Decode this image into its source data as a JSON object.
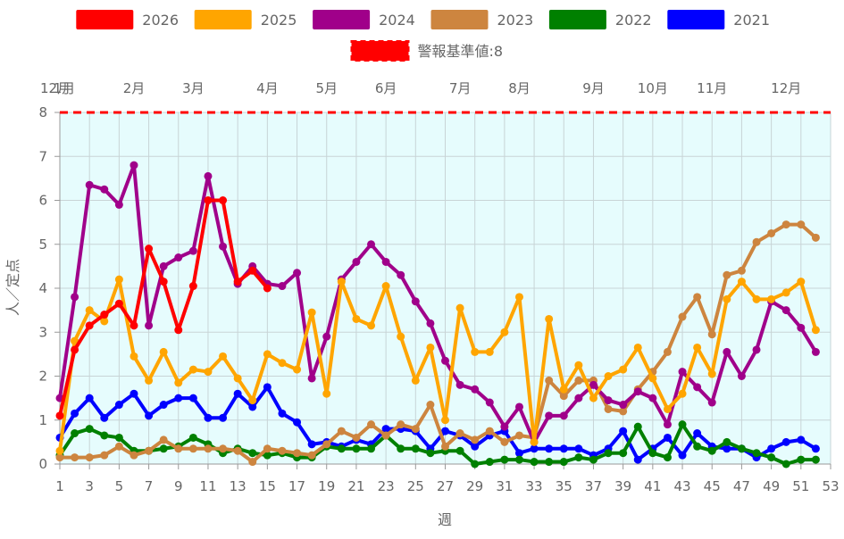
{
  "chart_data": {
    "type": "line",
    "xlabel": "週",
    "ylabel": "人／定点",
    "xlim": [
      1,
      53
    ],
    "ylim": [
      0,
      8
    ],
    "x_ticks": [
      1,
      3,
      5,
      7,
      9,
      11,
      13,
      15,
      17,
      19,
      21,
      23,
      25,
      27,
      29,
      31,
      33,
      35,
      37,
      39,
      41,
      43,
      45,
      47,
      49,
      51,
      53
    ],
    "y_ticks": [
      0,
      1,
      2,
      3,
      4,
      5,
      6,
      7,
      8
    ],
    "month_labels": [
      {
        "label": "12月",
        "week": 0.7
      },
      {
        "label": "1月",
        "week": 1.3
      },
      {
        "label": "2月",
        "week": 6.0
      },
      {
        "label": "3月",
        "week": 10.0
      },
      {
        "label": "4月",
        "week": 15.0
      },
      {
        "label": "5月",
        "week": 19.0
      },
      {
        "label": "6月",
        "week": 23.0
      },
      {
        "label": "7月",
        "week": 28.0
      },
      {
        "label": "8月",
        "week": 32.0
      },
      {
        "label": "9月",
        "week": 37.0
      },
      {
        "label": "10月",
        "week": 41.0
      },
      {
        "label": "11月",
        "week": 45.0
      },
      {
        "label": "12月",
        "week": 50.0
      }
    ],
    "threshold": {
      "name": "警報基準値:8",
      "value": 8,
      "color": "#ff0000"
    },
    "grid": true,
    "plot_background": "#e6fcfd",
    "legend_position": "top",
    "series": [
      {
        "name": "2026",
        "color": "#ff0000",
        "values": [
          1.1,
          2.6,
          3.15,
          3.4,
          3.65,
          3.15,
          4.9,
          4.15,
          3.05,
          4.05,
          6.0,
          6.0,
          4.15,
          4.4,
          4.0
        ]
      },
      {
        "name": "2025",
        "color": "#ffa500",
        "values": [
          0.3,
          2.8,
          3.5,
          3.25,
          4.2,
          2.45,
          1.9,
          2.55,
          1.85,
          2.15,
          2.1,
          2.45,
          1.95,
          1.45,
          2.5,
          2.3,
          2.15,
          3.45,
          1.6,
          4.15,
          3.3,
          3.15,
          4.05,
          2.9,
          1.9,
          2.65,
          1.0,
          3.55,
          2.55,
          2.55,
          3.0,
          3.8,
          0.5,
          3.3,
          1.7,
          2.25,
          1.5,
          2.0,
          2.15,
          2.65,
          1.95,
          1.25,
          1.6,
          2.65,
          2.05,
          3.75,
          4.15,
          3.75,
          3.75,
          3.9,
          4.15,
          3.05
        ]
      },
      {
        "name": "2024",
        "color": "#a0008a",
        "values": [
          1.5,
          3.8,
          6.35,
          6.25,
          5.9,
          6.8,
          3.15,
          4.5,
          4.7,
          4.85,
          6.55,
          4.95,
          4.1,
          4.5,
          4.1,
          4.05,
          4.35,
          1.95,
          2.9,
          4.2,
          4.6,
          5.0,
          4.6,
          4.3,
          3.7,
          3.2,
          2.35,
          1.8,
          1.7,
          1.4,
          0.85,
          1.3,
          0.5,
          1.1,
          1.1,
          1.5,
          1.8,
          1.45,
          1.35,
          1.65,
          1.5,
          0.9,
          2.1,
          1.75,
          1.4,
          2.55,
          2.0,
          2.6,
          3.7,
          3.5,
          3.1,
          2.55
        ]
      },
      {
        "name": "2023",
        "color": "#cd853f",
        "values": [
          0.15,
          0.15,
          0.15,
          0.2,
          0.4,
          0.2,
          0.3,
          0.55,
          0.35,
          0.35,
          0.35,
          0.35,
          0.3,
          0.05,
          0.35,
          0.3,
          0.25,
          0.2,
          0.45,
          0.75,
          0.6,
          0.9,
          0.65,
          0.9,
          0.8,
          1.35,
          0.4,
          0.7,
          0.55,
          0.75,
          0.5,
          0.65,
          0.6,
          1.9,
          1.55,
          1.9,
          1.9,
          1.25,
          1.2,
          1.7,
          2.1,
          2.55,
          3.35,
          3.8,
          2.95,
          4.3,
          4.4,
          5.05,
          5.25,
          5.45,
          5.45,
          5.15
        ]
      },
      {
        "name": "2022",
        "color": "#008000",
        "values": [
          0.2,
          0.7,
          0.8,
          0.65,
          0.6,
          0.3,
          0.3,
          0.35,
          0.4,
          0.6,
          0.45,
          0.25,
          0.35,
          0.25,
          0.2,
          0.25,
          0.15,
          0.15,
          0.4,
          0.35,
          0.35,
          0.35,
          0.65,
          0.35,
          0.35,
          0.25,
          0.3,
          0.3,
          0.0,
          0.05,
          0.1,
          0.1,
          0.05,
          0.05,
          0.05,
          0.15,
          0.1,
          0.25,
          0.25,
          0.85,
          0.25,
          0.15,
          0.9,
          0.4,
          0.3,
          0.5,
          0.35,
          0.25,
          0.15,
          0.0,
          0.1,
          0.1
        ]
      },
      {
        "name": "2021",
        "color": "#0000ff",
        "values": [
          0.6,
          1.15,
          1.5,
          1.05,
          1.35,
          1.6,
          1.1,
          1.35,
          1.5,
          1.5,
          1.05,
          1.05,
          1.6,
          1.3,
          1.75,
          1.15,
          0.95,
          0.45,
          0.5,
          0.4,
          0.55,
          0.45,
          0.8,
          0.8,
          0.75,
          0.35,
          0.75,
          0.65,
          0.4,
          0.65,
          0.75,
          0.25,
          0.35,
          0.35,
          0.35,
          0.35,
          0.2,
          0.35,
          0.75,
          0.1,
          0.35,
          0.6,
          0.2,
          0.7,
          0.4,
          0.35,
          0.35,
          0.15,
          0.35,
          0.5,
          0.55,
          0.35
        ]
      }
    ]
  }
}
